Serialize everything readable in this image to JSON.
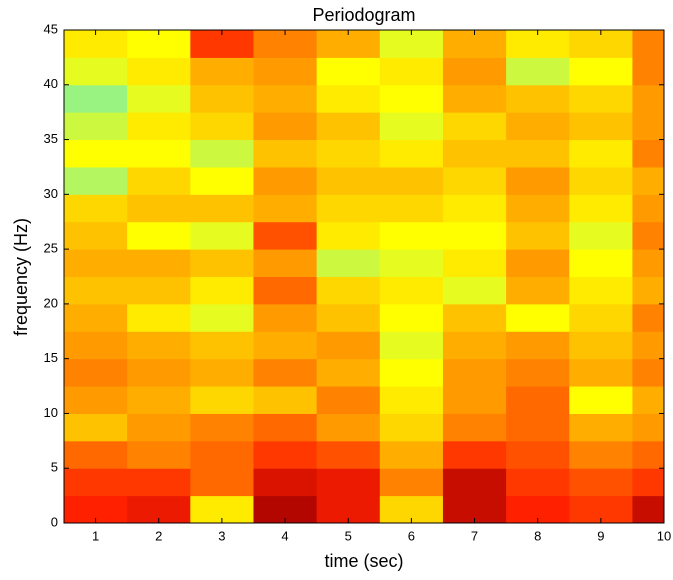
{
  "chart_data": {
    "type": "heatmap",
    "title": "Periodogram",
    "x_label": "time (sec)",
    "y_label": "frequency (Hz)",
    "x": [
      1,
      2,
      3,
      4,
      5,
      6,
      7,
      8,
      9,
      10
    ],
    "y": [
      1.25,
      3.75,
      6.25,
      8.75,
      11.25,
      13.75,
      16.25,
      18.75,
      21.25,
      23.75,
      26.25,
      28.75,
      31.25,
      33.75,
      36.25,
      38.75,
      41.25,
      43.75
    ],
    "z": [
      [
        0.25,
        0.2,
        0.7,
        0.05,
        0.2,
        0.65,
        0.1,
        0.25,
        0.3,
        0.1
      ],
      [
        0.3,
        0.3,
        0.4,
        0.15,
        0.2,
        0.45,
        0.1,
        0.3,
        0.35,
        0.3
      ],
      [
        0.4,
        0.45,
        0.4,
        0.3,
        0.35,
        0.55,
        0.3,
        0.35,
        0.45,
        0.4
      ],
      [
        0.6,
        0.5,
        0.45,
        0.4,
        0.5,
        0.65,
        0.45,
        0.4,
        0.55,
        0.5
      ],
      [
        0.5,
        0.55,
        0.65,
        0.6,
        0.45,
        0.7,
        0.5,
        0.4,
        0.75,
        0.55
      ],
      [
        0.45,
        0.5,
        0.55,
        0.45,
        0.55,
        0.75,
        0.5,
        0.45,
        0.55,
        0.45
      ],
      [
        0.5,
        0.55,
        0.6,
        0.55,
        0.5,
        0.8,
        0.55,
        0.5,
        0.6,
        0.5
      ],
      [
        0.55,
        0.7,
        0.8,
        0.5,
        0.6,
        0.75,
        0.6,
        0.75,
        0.65,
        0.45
      ],
      [
        0.6,
        0.6,
        0.7,
        0.4,
        0.65,
        0.7,
        0.8,
        0.55,
        0.7,
        0.55
      ],
      [
        0.55,
        0.55,
        0.6,
        0.5,
        0.85,
        0.8,
        0.7,
        0.5,
        0.75,
        0.5
      ],
      [
        0.6,
        0.75,
        0.8,
        0.35,
        0.7,
        0.75,
        0.75,
        0.6,
        0.8,
        0.45
      ],
      [
        0.65,
        0.6,
        0.6,
        0.55,
        0.65,
        0.65,
        0.7,
        0.55,
        0.7,
        0.5
      ],
      [
        0.9,
        0.65,
        0.75,
        0.5,
        0.6,
        0.6,
        0.65,
        0.5,
        0.65,
        0.55
      ],
      [
        0.75,
        0.75,
        0.85,
        0.6,
        0.65,
        0.7,
        0.6,
        0.6,
        0.7,
        0.45
      ],
      [
        0.85,
        0.7,
        0.65,
        0.5,
        0.6,
        0.8,
        0.65,
        0.55,
        0.6,
        0.5
      ],
      [
        0.95,
        0.8,
        0.6,
        0.55,
        0.7,
        0.75,
        0.55,
        0.6,
        0.65,
        0.5
      ],
      [
        0.8,
        0.7,
        0.55,
        0.5,
        0.75,
        0.7,
        0.5,
        0.85,
        0.75,
        0.45
      ],
      [
        0.7,
        0.75,
        0.3,
        0.45,
        0.55,
        0.8,
        0.55,
        0.7,
        0.65,
        0.45
      ]
    ],
    "zlim": [
      0,
      1
    ],
    "colormap": [
      "#a00000",
      "#ff2000",
      "#ff9a00",
      "#ffff00",
      "#80f0a0"
    ],
    "xlim": [
      0.5,
      10
    ],
    "xticks": [
      1,
      2,
      3,
      4,
      5,
      6,
      7,
      8,
      9,
      10
    ],
    "ylim": [
      0,
      45
    ],
    "yticks": [
      0,
      5,
      10,
      15,
      20,
      25,
      30,
      35,
      40,
      45
    ]
  }
}
